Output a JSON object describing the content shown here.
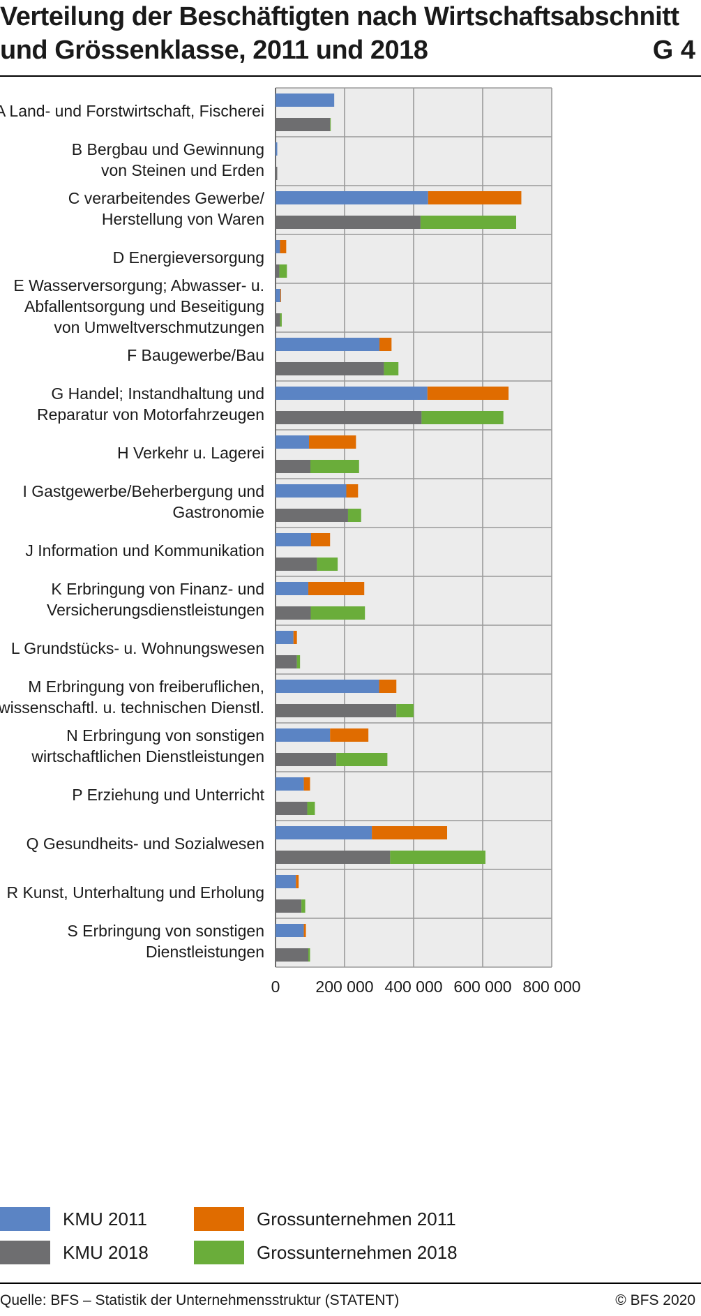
{
  "title": {
    "line1": "Verteilung der Beschäftigten nach Wirtschaftsabschnitt",
    "line2": "und Grössenklasse, 2011 und 2018",
    "graph_number": "G 4"
  },
  "colors": {
    "kmu_2011": "#5b84c4",
    "gross_2011": "#e06c00",
    "kmu_2018": "#6e6e70",
    "gross_2018": "#6aad3a",
    "plot_background": "#ececec",
    "grid": "#9a9a9a"
  },
  "chart_data": {
    "type": "bar",
    "orientation": "horizontal",
    "stacked": true,
    "categories": [
      "A Land- und Forstwirtschaft, Fischerei",
      "B Bergbau und Gewinnung von Steinen und Erden",
      "C verarbeitendes Gewerbe/ Herstellung von Waren",
      "D Energieversorgung",
      "E Wasserversorgung; Abwasser- u. Abfallentsorgung und Beseitigung von Umweltverschmutzungen",
      "F Baugewerbe/Bau",
      "G Handel; Instandhaltung und Reparatur von Motorfahrzeugen",
      "H Verkehr u. Lagerei",
      "I Gastgewerbe/Beherbergung und Gastronomie",
      "J Information und Kommunikation",
      "K Erbringung von Finanz- und Versicherungsdienstleistungen",
      "L Grundstücks- u. Wohnungswesen",
      "M Erbringung von freiberuflichen, wissenschaftl. u. technischen Dienstl.",
      "N Erbringung von sonstigen wirtschaftlichen Dienstleistungen",
      "P Erziehung und Unterricht",
      "Q Gesundheits- und Sozialwesen",
      "R Kunst, Unterhaltung und Erholung",
      "S Erbringung von sonstigen Dienstleistungen"
    ],
    "category_lines": [
      [
        "A Land- und Forstwirtschaft, Fischerei"
      ],
      [
        "B Bergbau und Gewinnung",
        "von Steinen und Erden"
      ],
      [
        "C verarbeitendes Gewerbe/",
        "Herstellung von Waren"
      ],
      [
        "D Energieversorgung"
      ],
      [
        "E Wasserversorgung; Abwasser- u.",
        "Abfallentsorgung und Beseitigung",
        "von Umweltverschmutzungen"
      ],
      [
        "F Baugewerbe/Bau"
      ],
      [
        "G Handel; Instandhaltung und",
        "Reparatur von Motorfahrzeugen"
      ],
      [
        "H Verkehr u. Lagerei"
      ],
      [
        "I Gastgewerbe/Beherbergung und",
        "Gastronomie"
      ],
      [
        "J Information und Kommunikation"
      ],
      [
        "K Erbringung von Finanz- und",
        "Versicherungsdienstleistungen"
      ],
      [
        "L Grundstücks- u. Wohnungswesen"
      ],
      [
        "M Erbringung von freiberuflichen,",
        "wissenschaftl. u. technischen Dienstl."
      ],
      [
        "N Erbringung von sonstigen",
        "wirtschaftlichen Dienstleistungen"
      ],
      [
        "P Erziehung und Unterricht"
      ],
      [
        "Q Gesundheits- und Sozialwesen"
      ],
      [
        "R Kunst, Unterhaltung und Erholung"
      ],
      [
        "S Erbringung von sonstigen",
        "Dienstleistungen"
      ]
    ],
    "bars_2011": [
      {
        "kmu": 170000,
        "gross": 0
      },
      {
        "kmu": 5000,
        "gross": 0
      },
      {
        "kmu": 442000,
        "gross": 270000
      },
      {
        "kmu": 13000,
        "gross": 18000
      },
      {
        "kmu": 14000,
        "gross": 2000
      },
      {
        "kmu": 301000,
        "gross": 35000
      },
      {
        "kmu": 440000,
        "gross": 235000
      },
      {
        "kmu": 97000,
        "gross": 136000
      },
      {
        "kmu": 205000,
        "gross": 34000
      },
      {
        "kmu": 103000,
        "gross": 55000
      },
      {
        "kmu": 95000,
        "gross": 162000
      },
      {
        "kmu": 52000,
        "gross": 10000
      },
      {
        "kmu": 300000,
        "gross": 50000
      },
      {
        "kmu": 158000,
        "gross": 111000
      },
      {
        "kmu": 82000,
        "gross": 18000
      },
      {
        "kmu": 279000,
        "gross": 218000
      },
      {
        "kmu": 59000,
        "gross": 8000
      },
      {
        "kmu": 82000,
        "gross": 6000
      }
    ],
    "bars_2018": [
      {
        "kmu": 158000,
        "gross": 2000
      },
      {
        "kmu": 5000,
        "gross": 0
      },
      {
        "kmu": 420000,
        "gross": 277000
      },
      {
        "kmu": 11000,
        "gross": 22000
      },
      {
        "kmu": 13000,
        "gross": 5000
      },
      {
        "kmu": 314000,
        "gross": 42000
      },
      {
        "kmu": 423000,
        "gross": 237000
      },
      {
        "kmu": 101000,
        "gross": 141000
      },
      {
        "kmu": 210000,
        "gross": 38000
      },
      {
        "kmu": 120000,
        "gross": 60000
      },
      {
        "kmu": 102000,
        "gross": 157000
      },
      {
        "kmu": 62000,
        "gross": 9000
      },
      {
        "kmu": 350000,
        "gross": 50000
      },
      {
        "kmu": 176000,
        "gross": 148000
      },
      {
        "kmu": 92000,
        "gross": 22000
      },
      {
        "kmu": 332000,
        "gross": 276000
      },
      {
        "kmu": 75000,
        "gross": 11000
      },
      {
        "kmu": 95000,
        "gross": 5000
      }
    ],
    "x_ticks": [
      0,
      200000,
      400000,
      600000,
      800000
    ],
    "x_tick_labels": [
      "0",
      "200 000",
      "400 000",
      "600 000",
      "800 000"
    ],
    "xlim": [
      0,
      800000
    ],
    "xlabel": "",
    "ylabel": "",
    "grid": true,
    "legend_position": "bottom"
  },
  "legend": {
    "kmu_2011": "KMU 2011",
    "gross_2011": "Grossunternehmen 2011",
    "kmu_2018": "KMU 2018",
    "gross_2018": "Grossunternehmen 2018"
  },
  "footer": {
    "source": "Quelle: BFS – Statistik der Unternehmensstruktur (STATENT)",
    "copyright": "© BFS 2020"
  }
}
